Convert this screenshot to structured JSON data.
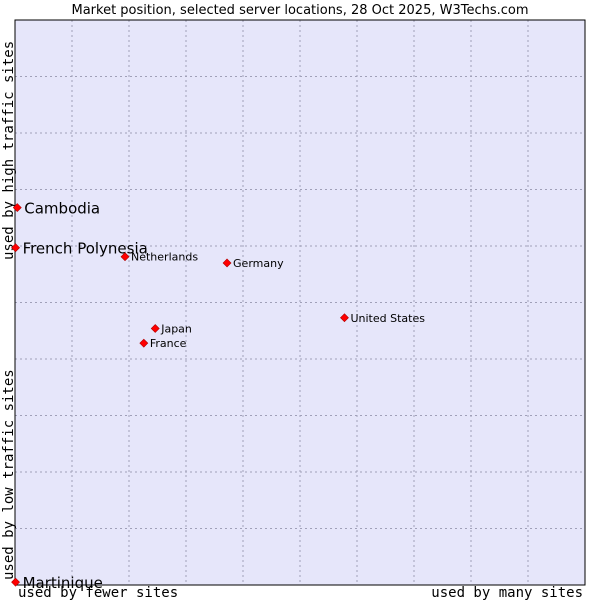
{
  "chart_data": {
    "type": "scatter",
    "title": "Market position, selected server locations, 28 Oct 2025, W3Techs.com",
    "xlabel_low": "used by fewer sites",
    "xlabel_high": "used by many sites",
    "ylabel_low": "used by low traffic sites",
    "ylabel_high": "used by high traffic sites",
    "xlim": [
      0,
      100
    ],
    "ylim": [
      0,
      100
    ],
    "grid": true,
    "point_color": "#ff0000",
    "points": [
      {
        "name": "Cambodia",
        "x": 0.4,
        "y": 66.8,
        "emphasis": true
      },
      {
        "name": "French Polynesia",
        "x": 0.1,
        "y": 59.7,
        "emphasis": true
      },
      {
        "name": "Martinique",
        "x": 0.1,
        "y": 0.5,
        "emphasis": true
      },
      {
        "name": "Netherlands",
        "x": 19.3,
        "y": 58.1,
        "emphasis": false
      },
      {
        "name": "Germany",
        "x": 37.2,
        "y": 57.0,
        "emphasis": false
      },
      {
        "name": "United States",
        "x": 57.8,
        "y": 47.3,
        "emphasis": false
      },
      {
        "name": "Japan",
        "x": 24.6,
        "y": 45.4,
        "emphasis": false
      },
      {
        "name": "France",
        "x": 22.6,
        "y": 42.8,
        "emphasis": false
      }
    ]
  },
  "colors": {
    "plot_background": "#e6e6fa",
    "plot_border": "#000000"
  }
}
